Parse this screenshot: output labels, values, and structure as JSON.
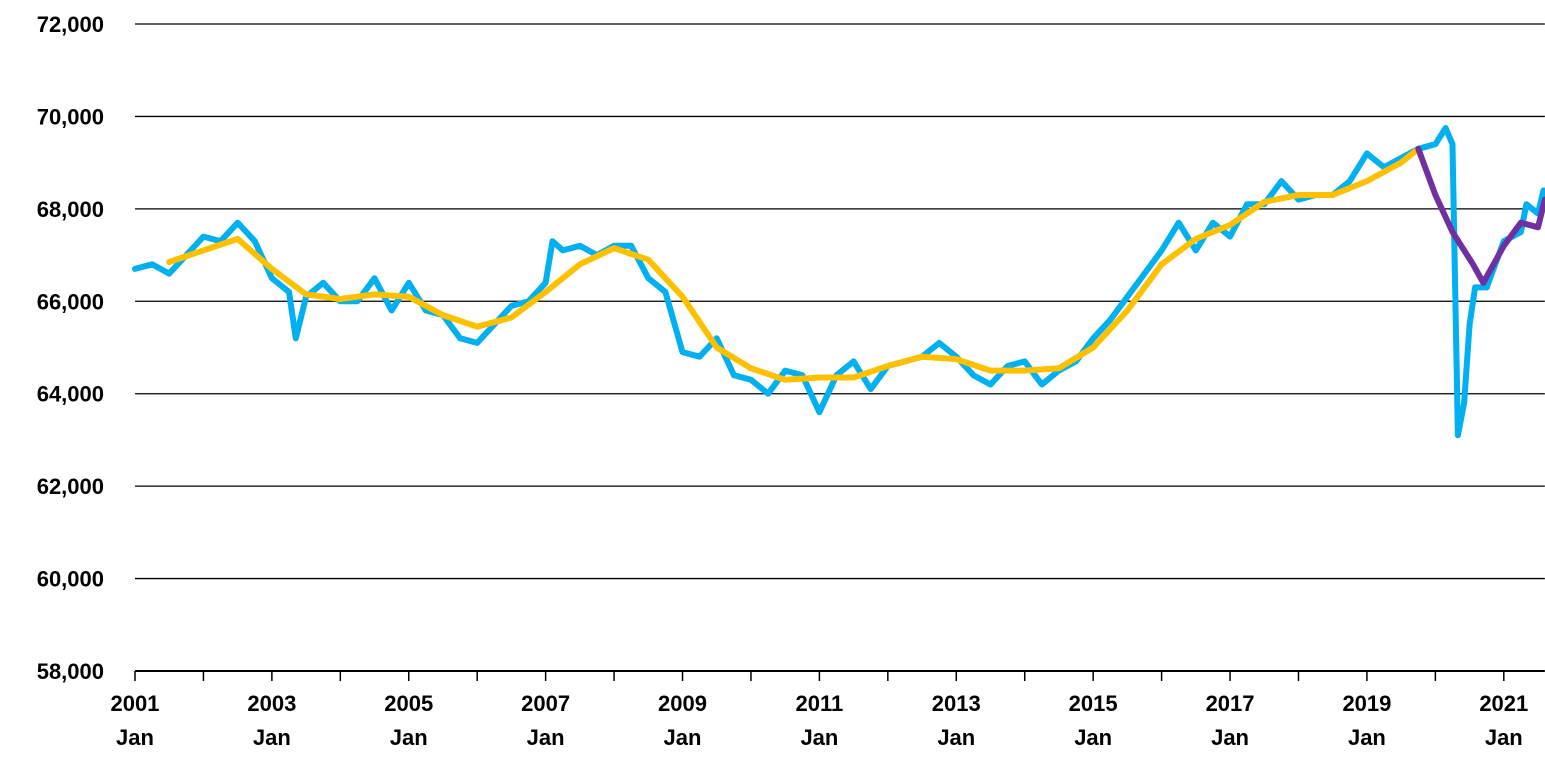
{
  "chart_data": {
    "type": "line",
    "xlim": [
      2001,
      2021.6
    ],
    "xticks": [
      {
        "value": 2001,
        "label": "2001\nJan"
      },
      {
        "value": 2003,
        "label": "2003\nJan"
      },
      {
        "value": 2005,
        "label": "2005\nJan"
      },
      {
        "value": 2007,
        "label": "2007\nJan"
      },
      {
        "value": 2009,
        "label": "2009\nJan"
      },
      {
        "value": 2011,
        "label": "2011\nJan"
      },
      {
        "value": 2013,
        "label": "2013\nJan"
      },
      {
        "value": 2015,
        "label": "2015\nJan"
      },
      {
        "value": 2017,
        "label": "2017\nJan"
      },
      {
        "value": 2019,
        "label": "2019\nJan"
      },
      {
        "value": 2021,
        "label": "2021\nJan"
      }
    ],
    "xminor_ticks": [
      2002,
      2004,
      2006,
      2008,
      2010,
      2012,
      2014,
      2016,
      2018,
      2020
    ],
    "ylim": [
      58000,
      72000
    ],
    "yticks": [
      {
        "value": 58000,
        "label": "58,000"
      },
      {
        "value": 60000,
        "label": "60,000"
      },
      {
        "value": 62000,
        "label": "62,000"
      },
      {
        "value": 64000,
        "label": "64,000"
      },
      {
        "value": 66000,
        "label": "66,000"
      },
      {
        "value": 68000,
        "label": "68,000"
      },
      {
        "value": 70000,
        "label": "70,000"
      },
      {
        "value": 72000,
        "label": "72,000"
      }
    ],
    "grid": true,
    "series": [
      {
        "color": "#00b0f0",
        "x": [
          2001.0,
          2001.25,
          2001.5,
          2001.75,
          2002.0,
          2002.25,
          2002.5,
          2002.75,
          2003.0,
          2003.25,
          2003.35,
          2003.5,
          2003.75,
          2004.0,
          2004.25,
          2004.5,
          2004.75,
          2005.0,
          2005.25,
          2005.5,
          2005.75,
          2006.0,
          2006.25,
          2006.5,
          2006.75,
          2007.0,
          2007.1,
          2007.25,
          2007.5,
          2007.75,
          2008.0,
          2008.25,
          2008.5,
          2008.75,
          2009.0,
          2009.25,
          2009.5,
          2009.75,
          2010.0,
          2010.25,
          2010.5,
          2010.75,
          2011.0,
          2011.25,
          2011.5,
          2011.75,
          2012.0,
          2012.25,
          2012.5,
          2012.75,
          2013.0,
          2013.25,
          2013.5,
          2013.75,
          2014.0,
          2014.25,
          2014.5,
          2014.75,
          2015.0,
          2015.25,
          2015.5,
          2015.75,
          2016.0,
          2016.25,
          2016.5,
          2016.75,
          2017.0,
          2017.25,
          2017.5,
          2017.75,
          2018.0,
          2018.25,
          2018.5,
          2018.75,
          2019.0,
          2019.25,
          2019.5,
          2019.75,
          2020.0,
          2020.15,
          2020.25,
          2020.33,
          2020.42,
          2020.5,
          2020.58,
          2020.75,
          2021.0,
          2021.25,
          2021.33,
          2021.5,
          2021.58
        ],
        "values": [
          66700,
          66800,
          66600,
          67000,
          67400,
          67300,
          67700,
          67300,
          66500,
          66200,
          65200,
          66100,
          66400,
          66000,
          66000,
          66500,
          65800,
          66400,
          65800,
          65700,
          65200,
          65100,
          65500,
          65900,
          66000,
          66400,
          67300,
          67100,
          67200,
          67000,
          67200,
          67200,
          66500,
          66200,
          64900,
          64800,
          65200,
          64400,
          64300,
          64000,
          64500,
          64400,
          63600,
          64400,
          64700,
          64100,
          64600,
          64700,
          64800,
          65100,
          64800,
          64400,
          64200,
          64600,
          64700,
          64200,
          64500,
          64700,
          65200,
          65600,
          66100,
          66600,
          67100,
          67700,
          67100,
          67700,
          67400,
          68100,
          68100,
          68600,
          68200,
          68300,
          68300,
          68600,
          69200,
          68900,
          69100,
          69300,
          69400,
          69750,
          69400,
          63100,
          63800,
          65500,
          66300,
          66300,
          67300,
          67500,
          68100,
          67900,
          68400
        ]
      },
      {
        "color": "#ffc000",
        "x": [
          2001.5,
          2002.0,
          2002.5,
          2003.0,
          2003.5,
          2004.0,
          2004.5,
          2005.0,
          2005.5,
          2006.0,
          2006.5,
          2007.0,
          2007.5,
          2008.0,
          2008.5,
          2009.0,
          2009.5,
          2010.0,
          2010.5,
          2011.0,
          2011.5,
          2012.0,
          2012.5,
          2013.0,
          2013.5,
          2014.0,
          2014.5,
          2015.0,
          2015.5,
          2016.0,
          2016.5,
          2017.0,
          2017.5,
          2018.0,
          2018.5,
          2019.0,
          2019.5,
          2019.75
        ],
        "values": [
          66850,
          67100,
          67350,
          66700,
          66150,
          66050,
          66150,
          66100,
          65700,
          65450,
          65650,
          66200,
          66800,
          67150,
          66900,
          66100,
          65000,
          64550,
          64300,
          64350,
          64350,
          64600,
          64800,
          64750,
          64500,
          64500,
          64550,
          65000,
          65800,
          66800,
          67350,
          67650,
          68150,
          68300,
          68300,
          68600,
          69000,
          69300
        ]
      },
      {
        "color": "#7030a0",
        "x": [
          2019.75,
          2020.0,
          2020.25,
          2020.55,
          2020.7,
          2021.0,
          2021.25,
          2021.5,
          2021.6
        ],
        "values": [
          69300,
          68300,
          67500,
          66800,
          66400,
          67200,
          67700,
          67600,
          68200
        ]
      }
    ]
  }
}
